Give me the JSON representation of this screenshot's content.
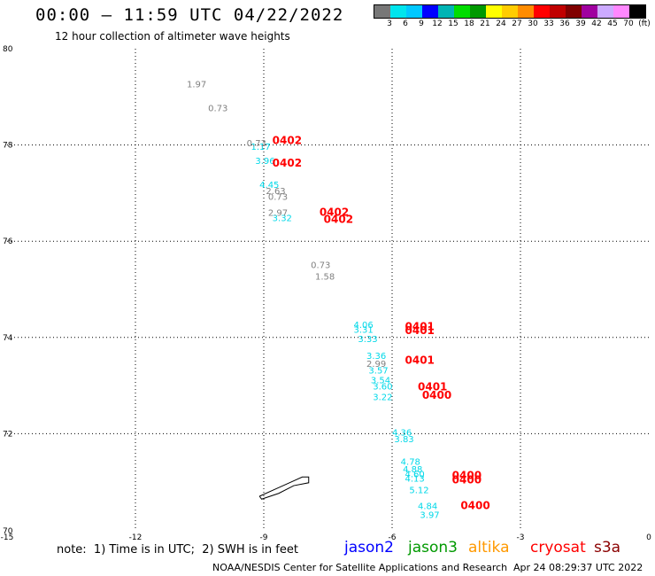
{
  "header": {
    "title": "00:00 – 11:59 UTC 04/22/2022",
    "subtitle": "12 hour collection of altimeter wave heights"
  },
  "colorbar": {
    "colors": [
      "#777777",
      "#00e5ee",
      "#00c8ff",
      "#0000ff",
      "#00b4b4",
      "#00dd00",
      "#009900",
      "#ffff00",
      "#ffcc00",
      "#ff8c00",
      "#ff0000",
      "#c00000",
      "#800000",
      "#a000a0",
      "#ccaaff",
      "#ff88ff",
      "#000000"
    ],
    "labels": [
      "3",
      "6",
      "9",
      "12",
      "15",
      "18",
      "21",
      "24",
      "27",
      "30",
      "33",
      "36",
      "39",
      "42",
      "45",
      "70",
      "(ft)"
    ]
  },
  "chart_data": {
    "type": "scatter",
    "title": "12 hour collection of altimeter wave heights",
    "xlim": [
      -15,
      0
    ],
    "ylim": [
      70,
      80
    ],
    "x_ticks": [
      -15,
      -12,
      -9,
      -6,
      -3,
      0
    ],
    "y_ticks": [
      70,
      72,
      74,
      76,
      78,
      80
    ],
    "grid": true,
    "series": [
      {
        "name": "jason2",
        "points": [
          {
            "x": -9.3,
            "y": 77.9,
            "label": "1.17",
            "color": "#00d8e8"
          },
          {
            "x": -9.2,
            "y": 77.61,
            "label": "3.96",
            "color": "#00d8e8"
          },
          {
            "x": -9.1,
            "y": 77.11,
            "label": "4.45",
            "color": "#00d8e8"
          },
          {
            "x": -8.8,
            "y": 76.42,
            "label": "3.32",
            "color": "#00d8e8"
          },
          {
            "x": -6.9,
            "y": 74.2,
            "label": "4.06",
            "color": "#00d8e8"
          },
          {
            "x": -6.9,
            "y": 74.1,
            "label": "3.31",
            "color": "#00d8e8"
          },
          {
            "x": -6.8,
            "y": 73.9,
            "label": "3.33",
            "color": "#00d8e8"
          },
          {
            "x": -6.6,
            "y": 73.55,
            "label": "3.36",
            "color": "#00d8e8"
          },
          {
            "x": -6.55,
            "y": 73.25,
            "label": "3.57",
            "color": "#00d8e8"
          },
          {
            "x": -6.5,
            "y": 73.05,
            "label": "3.54",
            "color": "#00d8e8"
          },
          {
            "x": -6.45,
            "y": 72.92,
            "label": "3.60",
            "color": "#00d8e8"
          },
          {
            "x": -6.45,
            "y": 72.7,
            "label": "3.22",
            "color": "#00d8e8"
          },
          {
            "x": -6.0,
            "y": 71.96,
            "label": "4.36",
            "color": "#00d8e8"
          },
          {
            "x": -5.95,
            "y": 71.82,
            "label": "3.83",
            "color": "#00d8e8"
          },
          {
            "x": -5.8,
            "y": 71.35,
            "label": "4.78",
            "color": "#00d8e8"
          },
          {
            "x": -5.75,
            "y": 71.2,
            "label": "4.88",
            "color": "#00d8e8"
          },
          {
            "x": -5.7,
            "y": 71.1,
            "label": "4.60",
            "color": "#00d8e8"
          },
          {
            "x": -5.7,
            "y": 71.0,
            "label": "4.13",
            "color": "#00d8e8"
          },
          {
            "x": -5.6,
            "y": 70.76,
            "label": "5.12",
            "color": "#00d8e8"
          },
          {
            "x": -5.4,
            "y": 70.43,
            "label": "4.84",
            "color": "#00d8e8"
          },
          {
            "x": -5.35,
            "y": 70.25,
            "label": "3.97",
            "color": "#00d8e8"
          }
        ]
      },
      {
        "name": "jason3",
        "points": [
          {
            "x": -10.8,
            "y": 79.2,
            "label": "1.97",
            "color": "#808080"
          },
          {
            "x": -10.3,
            "y": 78.7,
            "label": "0.73",
            "color": "#808080"
          },
          {
            "x": -9.4,
            "y": 77.97,
            "label": "0.73",
            "color": "#808080"
          },
          {
            "x": -8.95,
            "y": 76.98,
            "label": "2.63",
            "color": "#808080"
          },
          {
            "x": -8.9,
            "y": 76.86,
            "label": "0.73",
            "color": "#808080"
          },
          {
            "x": -8.9,
            "y": 76.53,
            "label": "2.97",
            "color": "#808080"
          },
          {
            "x": -7.9,
            "y": 75.44,
            "label": "0.73",
            "color": "#808080"
          },
          {
            "x": -7.8,
            "y": 75.2,
            "label": "1.58",
            "color": "#808080"
          },
          {
            "x": -6.6,
            "y": 73.39,
            "label": "2.99",
            "color": "#808080"
          }
        ]
      },
      {
        "name": "cryosat",
        "points": [
          {
            "x": -8.8,
            "y": 78.02,
            "label": "0402",
            "color": "#ff0000"
          },
          {
            "x": -8.8,
            "y": 77.55,
            "label": "0402",
            "color": "#ff0000"
          },
          {
            "x": -7.7,
            "y": 76.53,
            "label": "0402",
            "color": "#ff0000"
          },
          {
            "x": -7.6,
            "y": 76.38,
            "label": "0402",
            "color": "#ff0000"
          },
          {
            "x": -5.7,
            "y": 74.15,
            "label": "0401",
            "color": "#ff0000"
          },
          {
            "x": -5.7,
            "y": 74.07,
            "label": "0401",
            "color": "#ff0000"
          },
          {
            "x": -5.7,
            "y": 73.45,
            "label": "0401",
            "color": "#ff0000"
          },
          {
            "x": -5.4,
            "y": 72.9,
            "label": "0401",
            "color": "#ff0000"
          },
          {
            "x": -5.3,
            "y": 72.73,
            "label": "0400",
            "color": "#ff0000"
          },
          {
            "x": -4.6,
            "y": 71.06,
            "label": "0400",
            "color": "#ff0000"
          },
          {
            "x": -4.6,
            "y": 70.97,
            "label": "0400",
            "color": "#ff0000"
          },
          {
            "x": -4.4,
            "y": 70.43,
            "label": "0400",
            "color": "#ff0000"
          }
        ]
      }
    ],
    "coastline": [
      [
        -9.1,
        70.7
      ],
      [
        -8.7,
        70.86
      ],
      [
        -8.4,
        70.98
      ],
      [
        -8.1,
        71.1
      ],
      [
        -7.95,
        71.1
      ],
      [
        -7.95,
        70.98
      ],
      [
        -8.3,
        70.92
      ],
      [
        -8.65,
        70.76
      ],
      [
        -9.05,
        70.64
      ],
      [
        -9.1,
        70.7
      ]
    ]
  },
  "note": "note:  1) Time is in UTC;  2) SWH is in feet",
  "legend": [
    {
      "name": "jason2",
      "color": "#0000ff"
    },
    {
      "name": "jason3",
      "color": "#009900"
    },
    {
      "name": "altika",
      "color": "#ff9900"
    },
    {
      "name": "cryosat",
      "color": "#ff0000"
    },
    {
      "name": "s3a",
      "color": "#8b0000"
    }
  ],
  "footer": {
    "credit": "NOAA/NESDIS Center for Satellite Applications and Research",
    "timestamp": "Apr 24 08:29:37 UTC 2022"
  }
}
